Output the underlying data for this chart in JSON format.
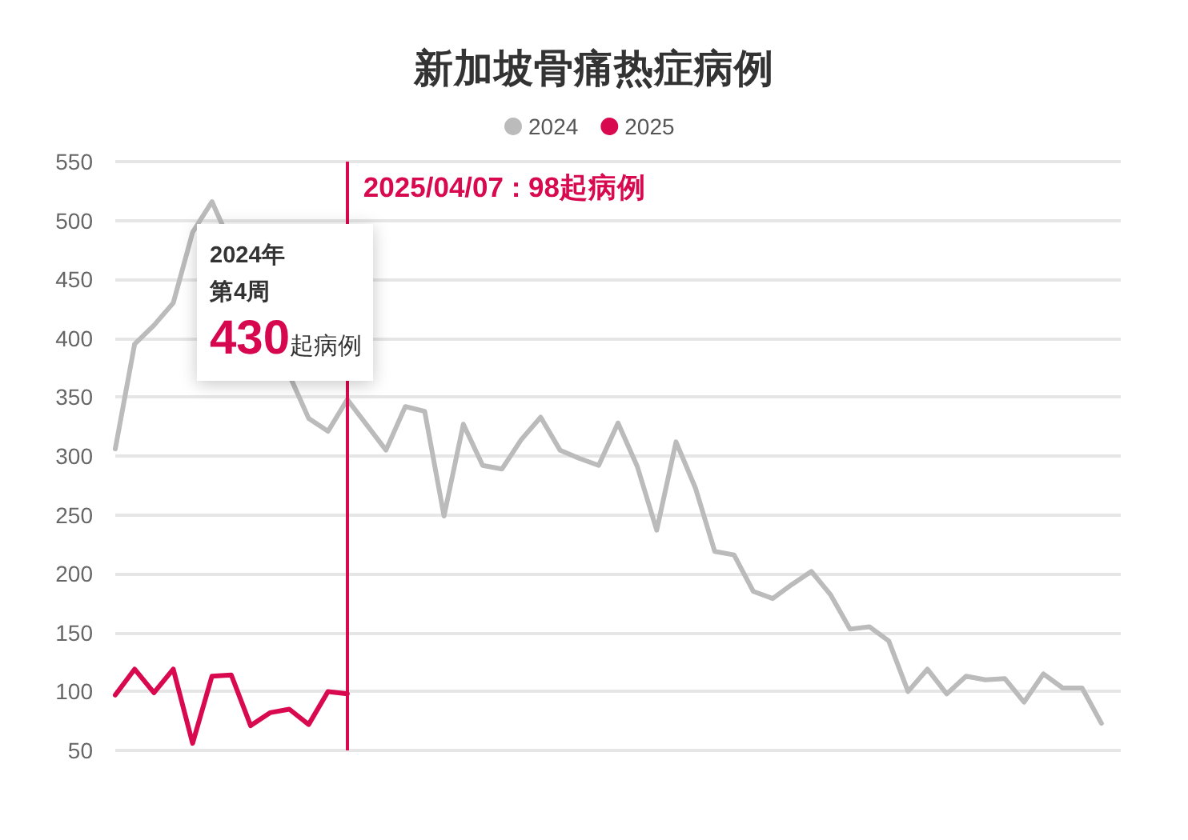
{
  "chart_data": {
    "type": "line",
    "title": "新加坡骨痛热症病例",
    "categories": [
      null,
      null,
      null,
      null,
      null,
      null,
      null,
      null,
      null,
      null,
      null,
      null,
      null,
      null,
      null,
      null,
      null,
      null,
      null,
      null,
      null,
      null,
      null,
      null,
      null,
      null,
      null,
      null,
      null,
      null,
      null,
      null,
      null,
      null,
      null,
      null,
      null,
      null,
      null,
      null,
      null,
      null,
      null,
      null,
      null,
      null,
      null,
      null,
      null,
      null,
      null,
      null,
      null
    ],
    "series": [
      {
        "name": "2024",
        "color": "#bbbbbb",
        "values": [
          306,
          395,
          411,
          430,
          490,
          516,
          null,
          null,
          null,
          null,
          332,
          321,
          348,
          null,
          305,
          342,
          338,
          249,
          327,
          292,
          289,
          314,
          333,
          305,
          298,
          292,
          328,
          291,
          237,
          312,
          273,
          219,
          216,
          185,
          179,
          191,
          202,
          182,
          153,
          155,
          143,
          100,
          119,
          98,
          113,
          110,
          111,
          91,
          115,
          103,
          103,
          73,
          null
        ]
      },
      {
        "name": "2025",
        "color": "#d8094f",
        "values": [
          97,
          119,
          99,
          119,
          56,
          113,
          114,
          71,
          82,
          85,
          72,
          100,
          98,
          null,
          null,
          null,
          null,
          null,
          null,
          null,
          null,
          null,
          null,
          null,
          null,
          null,
          null,
          null,
          null,
          null,
          null,
          null,
          null,
          null,
          null,
          null,
          null,
          null,
          null,
          null,
          null,
          null,
          null,
          null,
          null,
          null,
          null,
          null,
          null,
          null,
          null,
          null,
          null
        ]
      }
    ],
    "ylim": [
      50,
      550
    ],
    "yticks": [
      50,
      100,
      150,
      200,
      250,
      300,
      350,
      400,
      450,
      500,
      550
    ],
    "grid": "y",
    "legend": "top",
    "tick_labels": "y",
    "marker": "none",
    "line_style": "solid",
    "annotations": [
      "2025/04/07 : 98起病例",
      "2024年",
      "第4周",
      "430起病例"
    ]
  }
}
